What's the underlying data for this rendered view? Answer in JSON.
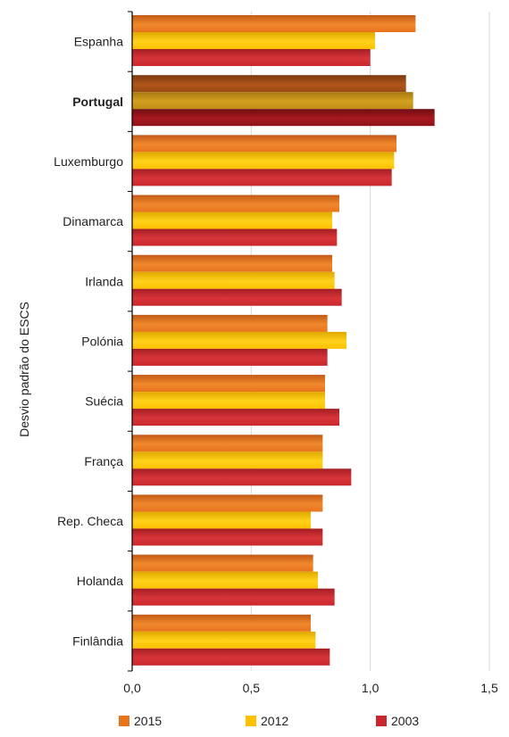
{
  "chart_data": {
    "type": "bar",
    "orientation": "horizontal",
    "ylabel": "Desvio padrão do ESCS",
    "xlabel": "",
    "xlim": [
      0,
      1.5
    ],
    "xticks": [
      "0,0",
      "0,5",
      "1,0",
      "1,5"
    ],
    "xtick_values": [
      0,
      0.5,
      1.0,
      1.5
    ],
    "grid": true,
    "legend_position": "bottom",
    "categories": [
      "Espanha",
      "Portugal",
      "Luxemburgo",
      "Dinamarca",
      "Irlanda",
      "Polónia",
      "Suécia",
      "França",
      "Rep. Checa",
      "Holanda",
      "Finlândia"
    ],
    "highlighted_category": "Portugal",
    "series": [
      {
        "name": "2015",
        "color": "#E8731E",
        "values": [
          1.19,
          1.15,
          1.11,
          0.87,
          0.84,
          0.82,
          0.81,
          0.8,
          0.8,
          0.76,
          0.75
        ]
      },
      {
        "name": "2012",
        "color": "#FFC000",
        "values": [
          1.02,
          1.18,
          1.1,
          0.84,
          0.85,
          0.9,
          0.81,
          0.8,
          0.75,
          0.78,
          0.77
        ]
      },
      {
        "name": "2003",
        "color": "#C8282D",
        "values": [
          1.0,
          1.27,
          1.09,
          0.86,
          0.88,
          0.82,
          0.87,
          0.92,
          0.8,
          0.85,
          0.83
        ]
      }
    ]
  }
}
